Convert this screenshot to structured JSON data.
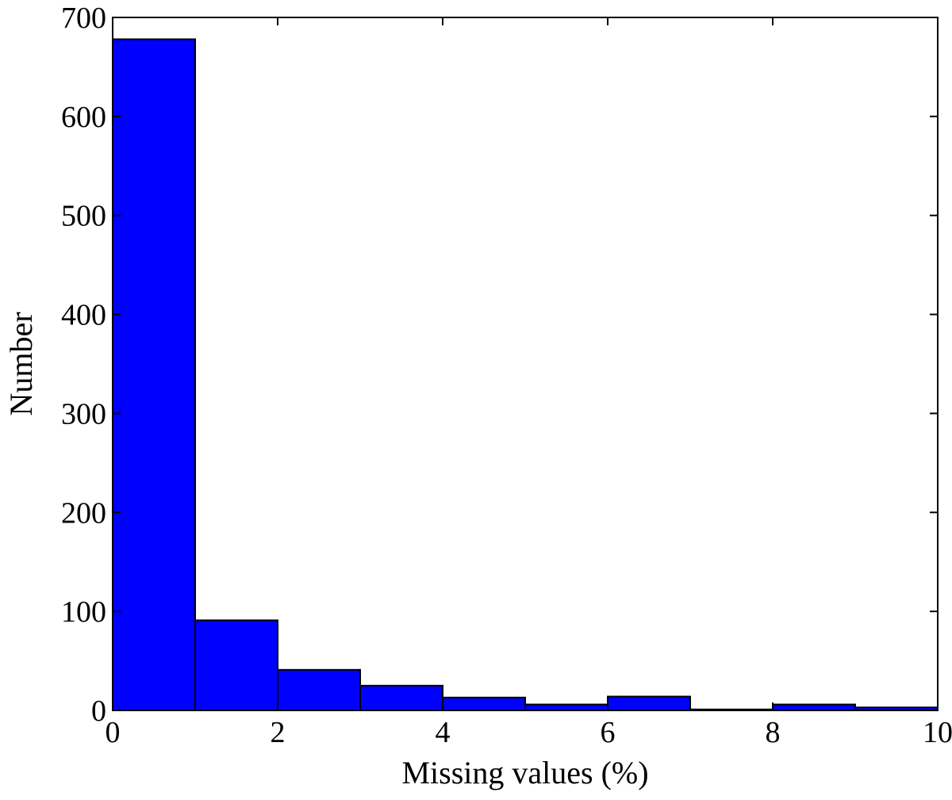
{
  "chart_data": {
    "type": "bar",
    "histogram": true,
    "xlabel": "Missing values (%)",
    "ylabel": "Number",
    "xlim": [
      0,
      10
    ],
    "ylim": [
      0,
      700
    ],
    "xticks": [
      "0",
      "2",
      "4",
      "6",
      "8",
      "10"
    ],
    "yticks": [
      "0",
      "100",
      "200",
      "300",
      "400",
      "500",
      "600",
      "700"
    ],
    "bins": [
      {
        "x0": 0,
        "x1": 1,
        "value": 678
      },
      {
        "x0": 1,
        "x1": 2,
        "value": 91
      },
      {
        "x0": 2,
        "x1": 3,
        "value": 41
      },
      {
        "x0": 3,
        "x1": 4,
        "value": 25
      },
      {
        "x0": 4,
        "x1": 5,
        "value": 13
      },
      {
        "x0": 5,
        "x1": 6,
        "value": 6
      },
      {
        "x0": 6,
        "x1": 7,
        "value": 14
      },
      {
        "x0": 7,
        "x1": 8,
        "value": 1
      },
      {
        "x0": 8,
        "x1": 9,
        "value": 6
      },
      {
        "x0": 9,
        "x1": 10,
        "value": 3
      }
    ],
    "bar_color": "#0000ff",
    "edge_color": "#000000",
    "grid": false,
    "legend": false
  }
}
